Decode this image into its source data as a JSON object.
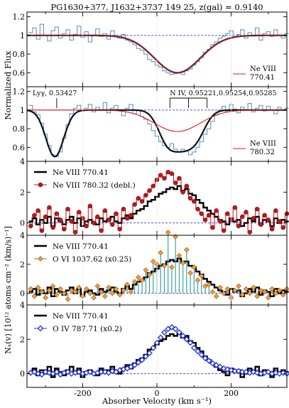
{
  "figure": {
    "title": "PG1630+377, J1632+3737 149 25, z(gal) = 0.9140",
    "xlabel": "Absorber Velocity (km s⁻¹)",
    "ylabel_flux": "Normalized Flux",
    "ylabel_na": "Nₐ(v) [10¹² atoms cm⁻² (km/s)⁻¹]",
    "xlim": [
      -350,
      350
    ],
    "xticks": [
      -200,
      0,
      200
    ]
  },
  "chart_data": [
    {
      "type": "line",
      "panel": "flux-1",
      "ylim": [
        0.45,
        1.25
      ],
      "yticks": [
        0.6,
        0.8,
        1.0,
        1.2
      ],
      "legend": {
        "label_line1": "Ne VIII",
        "label_line2": "770.41",
        "color": "#e0191f",
        "position": "bottom-right"
      },
      "continuum": 1.0,
      "fit": {
        "type": "gaussian",
        "center": 55,
        "depth": 0.4,
        "sigma": 62
      },
      "data_color": "#4f8fbf",
      "fit_color": "#e0191f",
      "data_x": [
        -340,
        -330,
        -320,
        -310,
        -300,
        -290,
        -280,
        -270,
        -260,
        -250,
        -240,
        -230,
        -220,
        -210,
        -200,
        -190,
        -180,
        -170,
        -160,
        -150,
        -140,
        -130,
        -120,
        -110,
        -100,
        -90,
        -80,
        -70,
        -60,
        -50,
        -40,
        -30,
        -20,
        -10,
        0,
        10,
        20,
        30,
        40,
        50,
        60,
        70,
        80,
        90,
        100,
        110,
        120,
        130,
        140,
        150,
        160,
        170,
        180,
        190,
        200,
        210,
        220,
        230,
        240,
        250,
        260,
        270,
        280,
        290,
        300,
        310,
        320,
        330,
        340,
        350
      ],
      "data_y": [
        1.03,
        1.08,
        0.96,
        1.12,
        1.0,
        0.94,
        1.05,
        1.09,
        0.97,
        1.02,
        1.06,
        0.95,
        1.01,
        1.1,
        0.98,
        1.04,
        0.93,
        1.0,
        1.07,
        0.99,
        1.02,
        0.96,
        1.05,
        1.0,
        0.97,
        1.01,
        0.95,
        0.93,
        0.9,
        0.86,
        0.84,
        0.8,
        0.74,
        0.72,
        0.68,
        0.66,
        0.62,
        0.6,
        0.58,
        0.59,
        0.6,
        0.58,
        0.62,
        0.64,
        0.68,
        0.72,
        0.76,
        0.82,
        0.85,
        0.9,
        0.93,
        0.97,
        0.99,
        1.02,
        1.05,
        0.98,
        1.01,
        1.06,
        0.97,
        1.03,
        1.0,
        1.08,
        0.95,
        1.02,
        1.04,
        0.99,
        1.06,
        1.0,
        0.97,
        1.02
      ]
    },
    {
      "type": "line",
      "panel": "flux-2",
      "ylim": [
        0.45,
        1.25
      ],
      "yticks": [
        0.6,
        0.8,
        1.0,
        1.2
      ],
      "legend": {
        "label_line1": "Ne VIII",
        "label_line2": "780.32",
        "color": "#e0191f",
        "position": "bottom-right"
      },
      "continuum": 1.0,
      "annotations": [
        {
          "text": "Lyγ, 0.53427",
          "ticks_x": [
            -270
          ]
        },
        {
          "text": "N IV, 0.95221,0.95254,0.95285",
          "ticks_x": [
            35,
            85,
            135
          ]
        }
      ],
      "fit_red": {
        "type": "gaussian",
        "center": 55,
        "depth": 0.23,
        "sigma": 62
      },
      "fit_black": {
        "components": [
          {
            "center": -275,
            "depth": 0.5,
            "sigma": 24
          },
          {
            "center": 30,
            "depth": 0.3,
            "sigma": 26
          },
          {
            "center": 70,
            "depth": 0.33,
            "sigma": 32
          },
          {
            "center": 105,
            "depth": 0.22,
            "sigma": 26
          }
        ]
      },
      "data_color": "#4f8fbf",
      "data_x": [
        -340,
        -330,
        -320,
        -310,
        -300,
        -290,
        -280,
        -270,
        -260,
        -250,
        -240,
        -230,
        -220,
        -210,
        -200,
        -190,
        -180,
        -170,
        -160,
        -150,
        -140,
        -130,
        -120,
        -110,
        -100,
        -90,
        -80,
        -70,
        -60,
        -50,
        -40,
        -30,
        -20,
        -10,
        0,
        10,
        20,
        30,
        40,
        50,
        60,
        70,
        80,
        90,
        100,
        110,
        120,
        130,
        140,
        150,
        160,
        170,
        180,
        190,
        200,
        210,
        220,
        230,
        240,
        250,
        260,
        270,
        280,
        290,
        300,
        310,
        320,
        330,
        340,
        350
      ],
      "data_y": [
        1.05,
        0.98,
        0.95,
        0.86,
        0.74,
        0.62,
        0.52,
        0.5,
        0.55,
        0.7,
        0.84,
        0.96,
        1.02,
        1.05,
        0.99,
        1.02,
        1.06,
        0.98,
        1.03,
        1.0,
        1.08,
        0.97,
        1.02,
        1.05,
        0.99,
        0.94,
        1.02,
        1.06,
        0.96,
        1.0,
        0.93,
        0.9,
        0.85,
        0.78,
        0.72,
        0.66,
        0.62,
        0.6,
        0.64,
        0.58,
        0.55,
        0.58,
        0.56,
        0.52,
        0.55,
        0.6,
        0.66,
        0.74,
        0.8,
        0.88,
        0.95,
        1.0,
        1.04,
        0.98,
        1.06,
        1.01,
        0.97,
        1.03,
        1.0,
        1.07,
        0.98,
        1.02,
        1.05,
        0.99,
        1.04,
        1.0,
        0.96,
        1.03,
        1.0,
        1.02
      ]
    },
    {
      "type": "line",
      "panel": "na-1",
      "ylim": [
        -0.8,
        4.0
      ],
      "yticks": [
        0,
        2,
        4
      ],
      "zero_line": 0,
      "legend_position": "top-left",
      "series": [
        {
          "name": "Ne VIII 770.41",
          "color": "#000000",
          "style": "step",
          "values": [
            0.1,
            0.3,
            -0.1,
            0.2,
            0.0,
            0.4,
            -0.2,
            0.3,
            0.1,
            -0.1,
            0.2,
            0.4,
            0.0,
            0.3,
            -0.2,
            0.1,
            0.2,
            0.0,
            -0.1,
            0.3,
            0.1,
            0.2,
            0.4,
            0.1,
            0.0,
            0.3,
            0.5,
            0.3,
            0.6,
            0.8,
            0.9,
            1.1,
            1.4,
            1.5,
            1.7,
            1.9,
            2.0,
            2.2,
            2.3,
            2.2,
            2.4,
            2.1,
            2.2,
            1.9,
            1.8,
            1.5,
            1.3,
            1.0,
            0.8,
            0.6,
            0.4,
            0.2,
            0.1,
            -0.1,
            0.3,
            0.1,
            0.2,
            -0.2,
            0.0,
            0.3,
            0.1,
            0.4,
            -0.1,
            0.2,
            0.1,
            -0.2,
            0.3,
            0.0,
            0.2,
            0.1
          ]
        },
        {
          "name": "Ne VIII 780.32 (debl.)",
          "color": "#c2161b",
          "marker": "circle",
          "marker_fill": "#c2161b",
          "values": [
            -0.2,
            0.5,
            0.8,
            -0.5,
            0.4,
            1.0,
            -0.3,
            0.6,
            0.2,
            -0.4,
            0.9,
            0.1,
            -0.6,
            0.7,
            0.3,
            -0.2,
            1.1,
            0.0,
            0.4,
            -0.5,
            0.8,
            0.2,
            -0.1,
            0.6,
            -0.4,
            0.9,
            0.3,
            0.5,
            1.2,
            1.6,
            1.4,
            1.8,
            2.1,
            2.4,
            2.8,
            3.1,
            2.9,
            3.3,
            3.2,
            2.6,
            2.9,
            2.0,
            2.4,
            1.6,
            1.4,
            0.9,
            0.6,
            0.2,
            0.5,
            -0.3,
            0.8,
            0.1,
            -0.5,
            0.6,
            0.2,
            1.0,
            -0.2,
            0.4,
            0.7,
            -0.6,
            0.3,
            0.9,
            -0.1,
            0.5,
            0.2,
            -0.4,
            0.8,
            0.1,
            -0.3,
            0.6
          ]
        }
      ]
    },
    {
      "type": "line",
      "panel": "na-2",
      "ylim": [
        -0.8,
        4.0
      ],
      "yticks": [
        0,
        2,
        4
      ],
      "zero_line": 0,
      "legend_position": "top-left",
      "series": [
        {
          "name": "Ne VIII 770.41",
          "color": "#000000",
          "style": "step",
          "values": [
            0.1,
            0.3,
            -0.1,
            0.2,
            0.0,
            0.4,
            -0.2,
            0.3,
            0.1,
            -0.1,
            0.2,
            0.4,
            0.0,
            0.3,
            -0.2,
            0.1,
            0.2,
            0.0,
            -0.1,
            0.3,
            0.1,
            0.2,
            0.4,
            0.1,
            0.0,
            0.3,
            0.5,
            0.3,
            0.6,
            0.8,
            0.9,
            1.1,
            1.4,
            1.5,
            1.7,
            1.9,
            2.0,
            2.2,
            2.3,
            2.2,
            2.4,
            2.1,
            2.2,
            1.9,
            1.8,
            1.5,
            1.3,
            1.0,
            0.8,
            0.6,
            0.4,
            0.2,
            0.1,
            -0.1,
            0.3,
            0.1,
            0.2,
            -0.2,
            0.0,
            0.3,
            0.1,
            0.4,
            -0.1,
            0.2,
            0.1,
            -0.2,
            0.3,
            0.0,
            0.2,
            0.1
          ]
        },
        {
          "name": "O VI 1037.62 (x0.25)",
          "color": "#2a9a9a",
          "marker": "diamond",
          "marker_fill": "#f39a3a",
          "values": [
            0.3,
            -0.2,
            0.4,
            0.1,
            -0.3,
            0.2,
            0.5,
            -0.1,
            0.3,
            0.0,
            -0.4,
            0.2,
            0.1,
            0.4,
            -0.2,
            0.3,
            0.0,
            -0.3,
            0.5,
            0.1,
            -0.2,
            0.4,
            0.0,
            0.3,
            -0.1,
            0.2,
            0.6,
            0.1,
            0.8,
            1.1,
            0.9,
            1.6,
            1.3,
            2.2,
            2.0,
            2.8,
            1.9,
            4.2,
            1.8,
            3.9,
            2.6,
            2.1,
            3.0,
            1.4,
            1.8,
            0.9,
            1.2,
            0.5,
            0.6,
            0.1,
            -0.2,
            0.4,
            0.0,
            0.3,
            -0.3,
            0.2,
            0.5,
            -0.1,
            0.3,
            0.0,
            0.4,
            -0.2,
            0.2,
            0.1,
            -0.3,
            0.3,
            0.0,
            0.2,
            -0.1,
            0.3
          ]
        }
      ]
    },
    {
      "type": "line",
      "panel": "na-3",
      "ylim": [
        -0.8,
        4.0
      ],
      "yticks": [
        0,
        2,
        4
      ],
      "zero_line": 0,
      "legend_position": "top-left",
      "series": [
        {
          "name": "Ne VIII 770.41",
          "color": "#000000",
          "style": "step",
          "values": [
            0.1,
            0.3,
            -0.1,
            0.2,
            0.0,
            0.4,
            -0.2,
            0.3,
            0.1,
            -0.1,
            0.2,
            0.4,
            0.0,
            0.3,
            -0.2,
            0.1,
            0.2,
            0.0,
            -0.1,
            0.3,
            0.1,
            0.2,
            0.4,
            0.1,
            0.0,
            0.3,
            0.5,
            0.3,
            0.6,
            0.8,
            0.9,
            1.1,
            1.4,
            1.5,
            1.7,
            1.9,
            2.0,
            2.2,
            2.3,
            2.2,
            2.4,
            2.1,
            2.2,
            1.9,
            1.8,
            1.5,
            1.3,
            1.0,
            0.8,
            0.6,
            0.4,
            0.2,
            0.1,
            -0.1,
            0.3,
            0.1,
            0.2,
            -0.2,
            0.0,
            0.3,
            0.1,
            0.4,
            -0.1,
            0.2,
            0.1,
            -0.2,
            0.3,
            0.0,
            0.2,
            0.1
          ]
        },
        {
          "name": "O IV 787.71 (x0.2)",
          "color": "#1f2fd6",
          "marker": "diamond-open",
          "marker_fill": "#ffffff",
          "values": [
            0.05,
            0.1,
            0.0,
            -0.05,
            0.1,
            0.05,
            0.0,
            0.1,
            -0.05,
            0.05,
            0.1,
            0.0,
            0.05,
            0.1,
            0.0,
            0.05,
            0.1,
            0.0,
            0.05,
            0.1,
            0.1,
            0.05,
            0.15,
            0.1,
            0.2,
            0.25,
            0.3,
            0.4,
            0.5,
            0.65,
            0.8,
            1.0,
            1.2,
            1.5,
            1.8,
            2.1,
            2.4,
            2.6,
            2.7,
            2.6,
            2.4,
            2.2,
            2.0,
            1.8,
            1.5,
            1.3,
            1.1,
            0.9,
            0.75,
            0.6,
            0.5,
            0.4,
            0.3,
            0.25,
            0.2,
            0.15,
            0.15,
            0.1,
            0.1,
            0.05,
            0.1,
            0.05,
            0.0,
            0.05,
            0.1,
            0.0,
            0.05,
            0.0,
            0.05,
            0.0
          ]
        }
      ]
    }
  ]
}
